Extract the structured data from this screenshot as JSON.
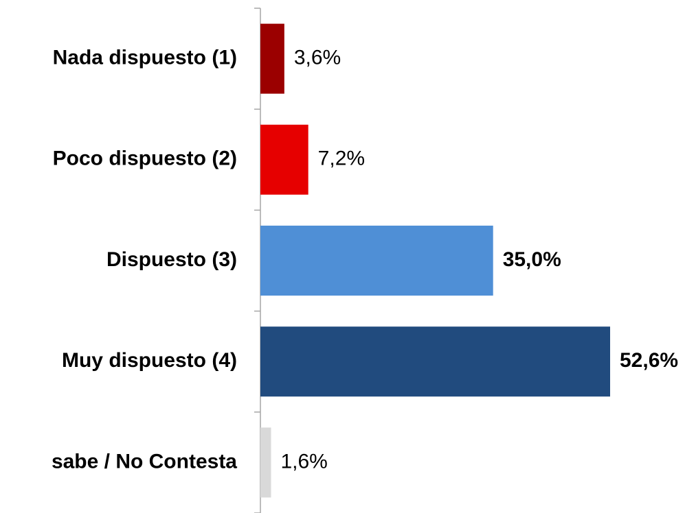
{
  "chart_data": {
    "type": "hbar",
    "categories": [
      "Nada dispuesto (1)",
      "Poco dispuesto (2)",
      "Dispuesto (3)",
      "Muy dispuesto (4)",
      "sabe / No Contesta"
    ],
    "values": [
      3.6,
      7.2,
      35.0,
      52.6,
      1.6
    ],
    "value_labels": [
      "3,6%",
      "7,2%",
      "35,0%",
      "52,6%",
      "1,6%"
    ],
    "colors": [
      "#9b0000",
      "#e60000",
      "#4f8fd6",
      "#214b7e",
      "#d9d9d9"
    ],
    "value_label_bold": [
      false,
      false,
      true,
      true,
      false
    ]
  }
}
